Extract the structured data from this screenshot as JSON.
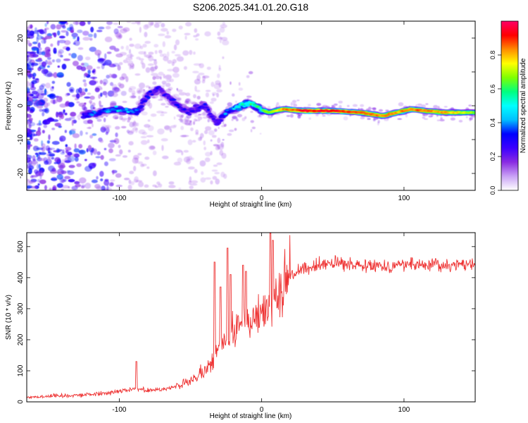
{
  "figure_title": "S206.2025.341.01.20.G18",
  "chart_data": [
    {
      "type": "heatmap",
      "xlabel": "Height of straight line (km)",
      "ylabel": "Frequency (Hz)",
      "xlim": [
        -165,
        150
      ],
      "ylim": [
        -25,
        25
      ],
      "xticks": [
        -100,
        0,
        100
      ],
      "yticks": [
        -20,
        -10,
        0,
        10,
        20
      ],
      "ytick_labels": [
        "-20",
        "-10",
        "0",
        "10",
        "20"
      ],
      "colorbar": {
        "label": "Normalized spectral amplitude",
        "range": [
          0,
          1
        ],
        "ticks": [
          0.0,
          0.2,
          0.4,
          0.6,
          0.8
        ],
        "tick_labels": [
          "0.0",
          "0.2",
          "0.4",
          "0.6",
          "0.8"
        ],
        "colormap": [
          "#ffffff",
          "#c9a2f5",
          "#8a2be2",
          "#3b00ff",
          "#0000ff",
          "#00bfff",
          "#00ffff",
          "#00ff7f",
          "#7fff00",
          "#ffff00",
          "#ff8c00",
          "#ff0000",
          "#ff0066"
        ]
      },
      "ridge": {
        "x": [
          -125,
          -115,
          -100,
          -88,
          -80,
          -72,
          -62,
          -52,
          -40,
          -32,
          -25,
          -15,
          -8,
          -2,
          5,
          15,
          30,
          50,
          70,
          85,
          95,
          105,
          115,
          130,
          150
        ],
        "freq": [
          -3,
          -2,
          -1,
          -2,
          3,
          5,
          1,
          -2,
          0,
          -5,
          -2,
          0,
          1,
          -1,
          -2,
          -1,
          -1.5,
          -1.5,
          -2,
          -3,
          -2,
          -1,
          -1.5,
          -2,
          -2
        ],
        "amplitude": [
          0.35,
          0.45,
          0.55,
          0.45,
          0.35,
          0.3,
          0.35,
          0.3,
          0.35,
          0.3,
          0.45,
          0.6,
          0.7,
          0.65,
          0.7,
          0.85,
          0.97,
          0.98,
          0.9,
          0.88,
          0.85,
          0.9,
          0.88,
          0.85,
          0.7
        ]
      }
    },
    {
      "type": "line",
      "xlabel": "Height of straight line (km)",
      "ylabel": "SNR (10 * v/v)",
      "xlim": [
        -165,
        150
      ],
      "ylim": [
        0,
        545
      ],
      "xticks": [
        -100,
        0,
        100
      ],
      "yticks": [
        0,
        100,
        200,
        300,
        400,
        500
      ],
      "series": [
        {
          "name": "SNR",
          "color": "#ee3333",
          "x": [
            -165,
            -150,
            -130,
            -120,
            -110,
            -100,
            -90,
            -80,
            -70,
            -60,
            -50,
            -45,
            -40,
            -35,
            -30,
            -25,
            -20,
            -15,
            -10,
            -5,
            0,
            5,
            10,
            15,
            20,
            25,
            30,
            40,
            50,
            60,
            70,
            80,
            90,
            100,
            110,
            120,
            130,
            140,
            150
          ],
          "y": [
            15,
            18,
            22,
            24,
            28,
            35,
            42,
            38,
            40,
            50,
            65,
            80,
            100,
            130,
            170,
            200,
            220,
            240,
            260,
            275,
            290,
            300,
            340,
            380,
            405,
            420,
            425,
            440,
            448,
            440,
            445,
            440,
            436,
            445,
            440,
            443,
            438,
            442,
            445
          ],
          "spikes": [
            {
              "x": -88,
              "y": 130
            },
            {
              "x": -33,
              "y": 450
            },
            {
              "x": -29,
              "y": 370
            },
            {
              "x": -24,
              "y": 495
            },
            {
              "x": -22,
              "y": 410
            },
            {
              "x": -13,
              "y": 440
            },
            {
              "x": -11,
              "y": 420
            },
            {
              "x": 6,
              "y": 543
            },
            {
              "x": 8,
              "y": 520
            }
          ]
        }
      ]
    }
  ]
}
